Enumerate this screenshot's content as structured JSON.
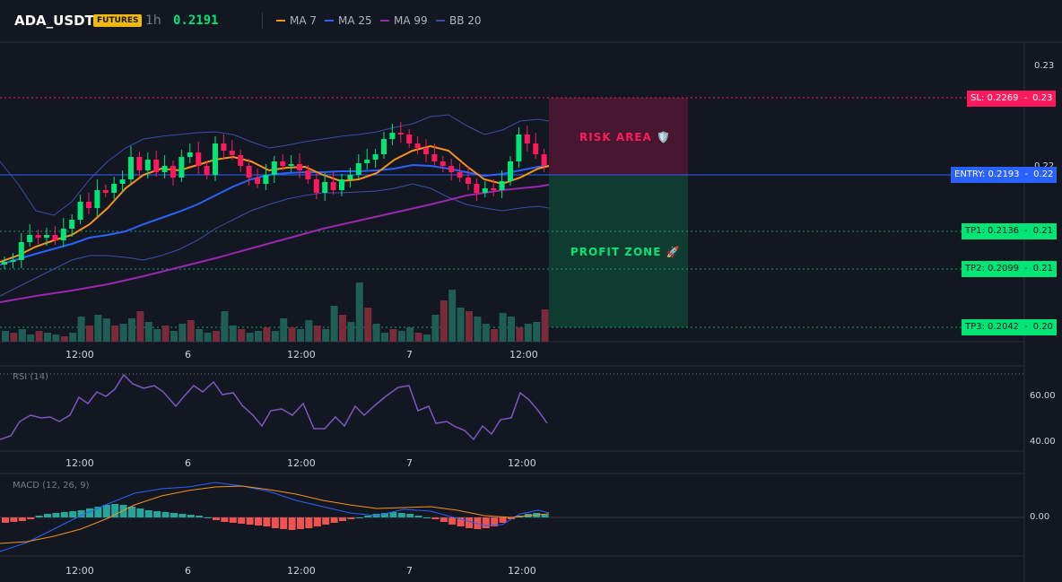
{
  "header": {
    "symbol": "ADA_USDT",
    "market_badge": "FUTURES",
    "timeframe": "1h",
    "last_price": "0.2191",
    "legend": [
      {
        "label": "MA 7",
        "color": "#f7931a"
      },
      {
        "label": "MA 25",
        "color": "#2962ff"
      },
      {
        "label": "MA 99",
        "color": "#9c27b0"
      },
      {
        "label": "BB 20",
        "color": "#3b4fa8"
      }
    ]
  },
  "price_axis": {
    "ticks": [
      "0.23",
      "0.22"
    ]
  },
  "levels": {
    "sl": {
      "label": "SL: 0.2269",
      "axis": "0.23",
      "color": "#ff1a5e"
    },
    "entry": {
      "label": "ENTRY: 0.2193",
      "axis": "0.22",
      "color": "#2962ff"
    },
    "tp1": {
      "label": "TP1: 0.2136",
      "axis": "0.21",
      "color": "#00e676"
    },
    "tp2": {
      "label": "TP2: 0.2099",
      "axis": "0.21",
      "color": "#00e676"
    },
    "tp3": {
      "label": "TP3: 0.2042",
      "axis": "0.20",
      "color": "#00e676"
    }
  },
  "zones": {
    "risk_label": "RISK AREA 🛡️",
    "profit_label": "PROFIT ZONE 🚀"
  },
  "time_axis": [
    "12:00",
    "6",
    "12:00",
    "7",
    "12:00"
  ],
  "rsi": {
    "title": "RSI (14)",
    "ticks": [
      "60.00",
      "40.00"
    ]
  },
  "macd": {
    "title": "MACD (12, 26, 9)",
    "ticks": [
      "0.00"
    ]
  },
  "colors": {
    "up": "#26a69a",
    "up_bright": "#00e676",
    "down": "#ef5350",
    "down_bright": "#ff1a5e",
    "background": "#131722"
  }
}
